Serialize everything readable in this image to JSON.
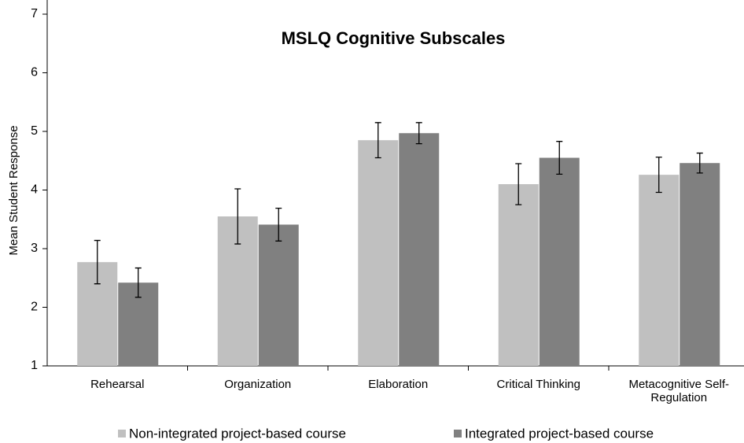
{
  "chart_data": {
    "type": "bar",
    "title": "MSLQ Cognitive Subscales",
    "y_label": "Mean Student Response",
    "categories": [
      "Rehearsal",
      "Organization",
      "Elaboration",
      "Critical Thinking",
      "Metacognitive Self-Regulation"
    ],
    "series": [
      {
        "name": "Non-integrated project-based course",
        "color": "#c0c0c0",
        "values": [
          2.77,
          3.55,
          4.85,
          4.1,
          4.26
        ],
        "errors": [
          0.37,
          0.47,
          0.3,
          0.35,
          0.3
        ]
      },
      {
        "name": "Integrated project-based course",
        "color": "#808080",
        "values": [
          2.42,
          3.41,
          4.97,
          4.55,
          4.46
        ],
        "errors": [
          0.25,
          0.28,
          0.18,
          0.28,
          0.17
        ]
      }
    ],
    "ylim": [
      1,
      7
    ],
    "yticks": [
      1,
      2,
      3,
      4,
      5,
      6,
      7
    ],
    "legend": "bottom"
  }
}
